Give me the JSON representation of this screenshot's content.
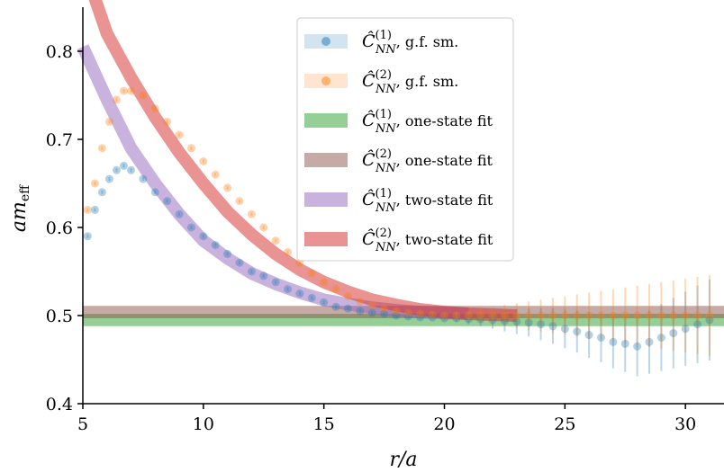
{
  "chart_data": {
    "type": "scatter",
    "xlabel": "r/a",
    "ylabel": "am_eff",
    "xlim": [
      5,
      31.6
    ],
    "ylim": [
      0.4,
      0.85
    ],
    "x_ticks": [
      "5",
      "10",
      "15",
      "20",
      "25",
      "30"
    ],
    "y_ticks": [
      "0.4",
      "0.5",
      "0.6",
      "0.7",
      "0.8"
    ],
    "legend_position": "top-right",
    "series": [
      {
        "name": "C(1)NN, g.f. sm.",
        "kind": "scatter",
        "color": "#1f77b4",
        "points": [
          [
            5.2,
            0.59
          ],
          [
            5.5,
            0.62
          ],
          [
            5.8,
            0.64
          ],
          [
            6.1,
            0.655
          ],
          [
            6.4,
            0.665
          ],
          [
            6.7,
            0.67
          ],
          [
            7.0,
            0.665
          ],
          [
            7.5,
            0.655
          ],
          [
            8.0,
            0.64
          ],
          [
            8.5,
            0.63
          ],
          [
            9.0,
            0.615
          ],
          [
            9.5,
            0.6
          ],
          [
            10.0,
            0.59
          ],
          [
            10.5,
            0.58
          ],
          [
            11.0,
            0.57
          ],
          [
            11.5,
            0.56
          ],
          [
            12.0,
            0.55
          ],
          [
            12.5,
            0.545
          ],
          [
            13.0,
            0.538
          ],
          [
            13.5,
            0.53
          ],
          [
            14.0,
            0.525
          ],
          [
            14.5,
            0.52
          ],
          [
            15.0,
            0.515
          ],
          [
            15.5,
            0.51
          ],
          [
            16.0,
            0.508
          ],
          [
            16.5,
            0.505
          ],
          [
            17.0,
            0.503
          ],
          [
            17.5,
            0.502
          ],
          [
            18.0,
            0.5
          ],
          [
            18.5,
            0.499
          ],
          [
            19.0,
            0.498
          ],
          [
            19.5,
            0.498
          ],
          [
            20.0,
            0.497
          ],
          [
            20.5,
            0.497
          ],
          [
            21.0,
            0.496
          ],
          [
            21.5,
            0.496
          ],
          [
            22.0,
            0.495
          ],
          [
            22.5,
            0.494
          ],
          [
            23.0,
            0.493
          ],
          [
            23.5,
            0.492
          ],
          [
            24.0,
            0.49
          ],
          [
            24.5,
            0.488
          ],
          [
            25.0,
            0.485
          ],
          [
            25.5,
            0.482
          ],
          [
            26.0,
            0.478
          ],
          [
            26.5,
            0.475
          ],
          [
            27.0,
            0.47
          ],
          [
            27.5,
            0.468
          ],
          [
            28.0,
            0.465
          ],
          [
            28.5,
            0.47
          ],
          [
            29.0,
            0.475
          ],
          [
            29.5,
            0.48
          ],
          [
            30.0,
            0.485
          ],
          [
            30.5,
            0.49
          ],
          [
            31.0,
            0.495
          ]
        ]
      },
      {
        "name": "C(2)NN, g.f. sm.",
        "kind": "scatter",
        "color": "#ff7f0e",
        "points": [
          [
            5.2,
            0.62
          ],
          [
            5.5,
            0.65
          ],
          [
            5.8,
            0.69
          ],
          [
            6.1,
            0.72
          ],
          [
            6.4,
            0.745
          ],
          [
            6.7,
            0.755
          ],
          [
            7.0,
            0.755
          ],
          [
            7.5,
            0.75
          ],
          [
            8.0,
            0.735
          ],
          [
            8.5,
            0.72
          ],
          [
            9.0,
            0.705
          ],
          [
            9.5,
            0.69
          ],
          [
            10.0,
            0.675
          ],
          [
            10.5,
            0.66
          ],
          [
            11.0,
            0.645
          ],
          [
            11.5,
            0.63
          ],
          [
            12.0,
            0.615
          ],
          [
            12.5,
            0.6
          ],
          [
            13.0,
            0.585
          ],
          [
            13.5,
            0.572
          ],
          [
            14.0,
            0.56
          ],
          [
            14.5,
            0.548
          ],
          [
            15.0,
            0.538
          ],
          [
            15.5,
            0.53
          ],
          [
            16.0,
            0.522
          ],
          [
            16.5,
            0.516
          ],
          [
            17.0,
            0.512
          ],
          [
            17.5,
            0.508
          ],
          [
            18.0,
            0.505
          ],
          [
            18.5,
            0.503
          ],
          [
            19.0,
            0.502
          ],
          [
            19.5,
            0.501
          ],
          [
            20.0,
            0.5
          ],
          [
            20.5,
            0.5
          ],
          [
            21.0,
            0.5
          ],
          [
            21.5,
            0.5
          ],
          [
            22.0,
            0.5
          ],
          [
            22.5,
            0.5
          ],
          [
            23.0,
            0.5
          ],
          [
            23.5,
            0.5
          ],
          [
            24.0,
            0.5
          ],
          [
            24.5,
            0.5
          ],
          [
            25.0,
            0.5
          ],
          [
            25.5,
            0.5
          ],
          [
            26.0,
            0.5
          ],
          [
            26.5,
            0.5
          ],
          [
            27.0,
            0.5
          ],
          [
            27.5,
            0.5
          ],
          [
            28.0,
            0.5
          ],
          [
            28.5,
            0.5
          ],
          [
            29.0,
            0.5
          ],
          [
            29.5,
            0.5
          ],
          [
            30.0,
            0.5
          ],
          [
            30.5,
            0.5
          ],
          [
            31.0,
            0.5
          ]
        ]
      },
      {
        "name": "C(1)NN, one-state fit",
        "kind": "band",
        "color": "#2ca02c",
        "x": [
          5,
          31.6
        ],
        "y_low": 0.488,
        "y_high": 0.502
      },
      {
        "name": "C(2)NN, one-state fit",
        "kind": "band",
        "color": "#8c564b",
        "x": [
          5,
          31.6
        ],
        "y_low": 0.497,
        "y_high": 0.511
      },
      {
        "name": "C(1)NN, two-state fit",
        "kind": "curve",
        "color": "#9467bd",
        "x": [
          5,
          6,
          7,
          8,
          9,
          10,
          11,
          12,
          13,
          14,
          15,
          16,
          17,
          18,
          19,
          20,
          21
        ],
        "y": [
          0.805,
          0.745,
          0.69,
          0.65,
          0.615,
          0.585,
          0.565,
          0.548,
          0.536,
          0.526,
          0.518,
          0.513,
          0.509,
          0.506,
          0.504,
          0.503,
          0.502
        ]
      },
      {
        "name": "C(2)NN, two-state fit",
        "kind": "curve",
        "color": "#d62728",
        "x": [
          5,
          6,
          7,
          8,
          9,
          10,
          11,
          12,
          13,
          14,
          15,
          16,
          17,
          18,
          19,
          20,
          21,
          22,
          23
        ],
        "y": [
          0.9,
          0.82,
          0.77,
          0.725,
          0.685,
          0.65,
          0.618,
          0.592,
          0.57,
          0.552,
          0.538,
          0.527,
          0.518,
          0.512,
          0.507,
          0.504,
          0.502,
          0.501,
          0.5
        ]
      }
    ],
    "legend": [
      {
        "sup": "(1)",
        "suffix": ", g.f. sm.",
        "color": "#1f77b4",
        "kind": "scatter"
      },
      {
        "sup": "(2)",
        "suffix": ", g.f. sm.",
        "color": "#ff7f0e",
        "kind": "scatter"
      },
      {
        "sup": "(1)",
        "suffix": ", one-state fit",
        "color": "#2ca02c",
        "kind": "band"
      },
      {
        "sup": "(2)",
        "suffix": ", one-state fit",
        "color": "#8c564b",
        "kind": "band"
      },
      {
        "sup": "(1)",
        "suffix": ", two-state fit",
        "color": "#9467bd",
        "kind": "curve"
      },
      {
        "sup": "(2)",
        "suffix": ", two-state fit",
        "color": "#d62728",
        "kind": "curve"
      }
    ]
  }
}
